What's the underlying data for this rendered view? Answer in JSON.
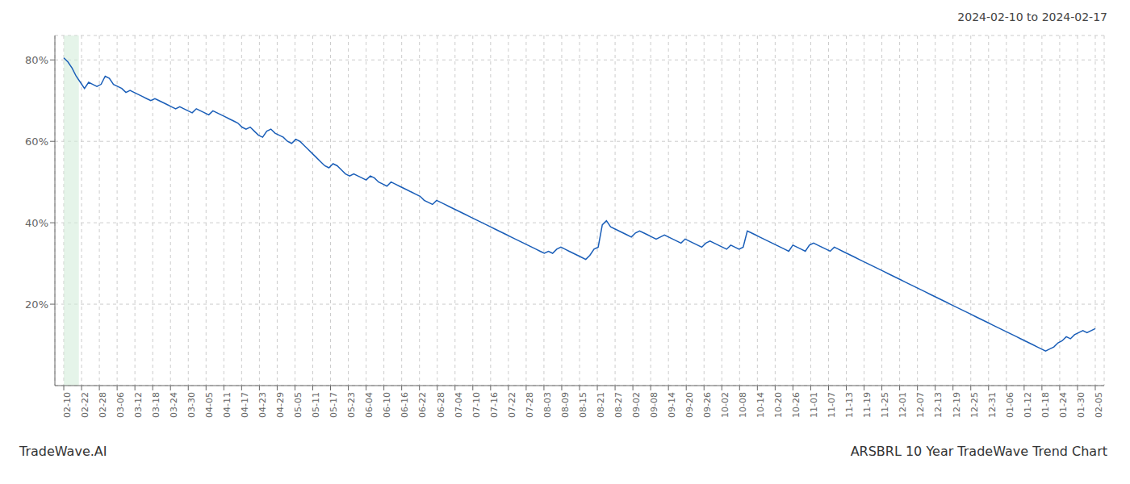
{
  "chart_data": {
    "type": "line",
    "title": "ARSBRL 10 Year TradeWave Trend Chart",
    "subtitle": "2024-02-10 to 2024-02-17",
    "annotations": [
      "TradeWave.AI"
    ],
    "color": "#1a5eb8",
    "grid": true,
    "xlim": [
      -0.5,
      58.5
    ],
    "xticks": [
      {
        "value": 0,
        "label": "02-10"
      },
      {
        "value": 1,
        "label": "02-22"
      },
      {
        "value": 2,
        "label": "02-28"
      },
      {
        "value": 3,
        "label": "03-06"
      },
      {
        "value": 4,
        "label": "03-12"
      },
      {
        "value": 5,
        "label": "03-18"
      },
      {
        "value": 6,
        "label": "03-24"
      },
      {
        "value": 7,
        "label": "03-30"
      },
      {
        "value": 8,
        "label": "04-05"
      },
      {
        "value": 9,
        "label": "04-11"
      },
      {
        "value": 10,
        "label": "04-17"
      },
      {
        "value": 11,
        "label": "04-23"
      },
      {
        "value": 12,
        "label": "04-29"
      },
      {
        "value": 13,
        "label": "05-05"
      },
      {
        "value": 14,
        "label": "05-11"
      },
      {
        "value": 15,
        "label": "05-17"
      },
      {
        "value": 16,
        "label": "05-23"
      },
      {
        "value": 17,
        "label": "06-04"
      },
      {
        "value": 18,
        "label": "06-10"
      },
      {
        "value": 19,
        "label": "06-16"
      },
      {
        "value": 20,
        "label": "06-22"
      },
      {
        "value": 21,
        "label": "06-28"
      },
      {
        "value": 22,
        "label": "07-04"
      },
      {
        "value": 23,
        "label": "07-10"
      },
      {
        "value": 24,
        "label": "07-16"
      },
      {
        "value": 25,
        "label": "07-22"
      },
      {
        "value": 26,
        "label": "07-28"
      },
      {
        "value": 27,
        "label": "08-03"
      },
      {
        "value": 28,
        "label": "08-09"
      },
      {
        "value": 29,
        "label": "08-15"
      },
      {
        "value": 30,
        "label": "08-21"
      },
      {
        "value": 31,
        "label": "08-27"
      },
      {
        "value": 32,
        "label": "09-02"
      },
      {
        "value": 33,
        "label": "09-08"
      },
      {
        "value": 34,
        "label": "09-14"
      },
      {
        "value": 35,
        "label": "09-20"
      },
      {
        "value": 36,
        "label": "09-26"
      },
      {
        "value": 37,
        "label": "10-02"
      },
      {
        "value": 38,
        "label": "10-08"
      },
      {
        "value": 39,
        "label": "10-14"
      },
      {
        "value": 40,
        "label": "10-20"
      },
      {
        "value": 41,
        "label": "10-26"
      },
      {
        "value": 42,
        "label": "11-01"
      },
      {
        "value": 43,
        "label": "11-07"
      },
      {
        "value": 44,
        "label": "11-13"
      },
      {
        "value": 45,
        "label": "11-19"
      },
      {
        "value": 46,
        "label": "11-25"
      },
      {
        "value": 47,
        "label": "12-01"
      },
      {
        "value": 48,
        "label": "12-07"
      },
      {
        "value": 49,
        "label": "12-13"
      },
      {
        "value": 50,
        "label": "12-19"
      },
      {
        "value": 51,
        "label": "12-25"
      },
      {
        "value": 52,
        "label": "12-31"
      },
      {
        "value": 53,
        "label": "01-06"
      },
      {
        "value": 54,
        "label": "01-12"
      },
      {
        "value": 55,
        "label": "01-18"
      },
      {
        "value": 56,
        "label": "01-24"
      },
      {
        "value": 57,
        "label": "01-30"
      },
      {
        "value": 58,
        "label": "02-05"
      }
    ],
    "ylim": [
      0,
      86
    ],
    "yticks": [
      {
        "value": 20,
        "label": "20%"
      },
      {
        "value": 40,
        "label": "40%"
      },
      {
        "value": 60,
        "label": "60%"
      },
      {
        "value": 80,
        "label": "80%"
      }
    ],
    "highlight": {
      "x": [
        0.0,
        0.85
      ],
      "color": "#d4edda"
    },
    "x": [
      0,
      0.2329,
      0.4659,
      0.6988,
      0.9317,
      1.1647,
      1.3976,
      1.6305,
      1.8635,
      2.0964,
      2.3293,
      2.5622,
      2.7952,
      3.0281,
      3.261,
      3.494,
      3.7269,
      3.9598,
      4.1928,
      4.4257,
      4.6586,
      4.8916,
      5.1245,
      5.3574,
      5.5904,
      5.8233,
      6.0562,
      6.2892,
      6.5221,
      6.755,
      6.988,
      7.2209,
      7.4538,
      7.6867,
      7.9197,
      8.1526,
      8.3855,
      8.6185,
      8.8514,
      9.0843,
      9.3173,
      9.5502,
      9.7831,
      10.0161,
      10.249,
      10.4819,
      10.7149,
      10.9478,
      11.1807,
      11.4137,
      11.6466,
      11.8795,
      12.1124,
      12.3454,
      12.5783,
      12.8112,
      13.0442,
      13.2771,
      13.51,
      13.743,
      13.9759,
      14.2088,
      14.4418,
      14.6747,
      14.9076,
      15.1406,
      15.3735,
      15.6064,
      15.8394,
      16.0723,
      16.3052,
      16.5382,
      16.7711,
      17.004,
      17.2369,
      17.4699,
      17.7028,
      17.9357,
      18.1687,
      18.4016,
      18.6345,
      18.8675,
      19.1004,
      19.3333,
      19.5663,
      19.7992,
      20.0321,
      20.2651,
      20.498,
      20.7309,
      20.9639,
      21.1968,
      21.4297,
      21.6627,
      21.8956,
      22.1285,
      22.3614,
      22.5944,
      22.8273,
      23.0602,
      23.2932,
      23.5261,
      23.759,
      23.992,
      24.2249,
      24.4578,
      24.6908,
      24.9237,
      25.1566,
      25.3896,
      25.6225,
      25.8554,
      26.0884,
      26.3213,
      26.5542,
      26.7871,
      27.0201,
      27.253,
      27.4859,
      27.7189,
      27.9518,
      28.1847,
      28.4177,
      28.6506,
      28.8835,
      29.1165,
      29.3494,
      29.5823,
      29.8153,
      30.0482,
      30.2811,
      30.5141,
      30.747,
      30.9799,
      31.2129,
      31.4458,
      31.6787,
      31.9116,
      32.1446,
      32.3775,
      32.6104,
      32.8434,
      33.0763,
      33.3092,
      33.5422,
      33.7751,
      34.008,
      34.241,
      34.4739,
      34.7068,
      34.9398,
      35.1727,
      35.4056,
      35.6386,
      35.8715,
      36.1044,
      36.3373,
      36.5703,
      36.8032,
      37.0361,
      37.2691,
      37.502,
      37.7349,
      37.9679,
      38.2008,
      38.4337,
      38.6667,
      38.8996,
      39.1325,
      39.3655,
      39.5984,
      39.8313,
      40.0643,
      40.2972,
      40.5301,
      40.7631,
      40.996,
      41.2289,
      41.4618,
      41.6948,
      41.9277,
      42.1606,
      42.3936,
      42.6265,
      42.8594,
      43.0924,
      43.3253,
      43.5582,
      43.7912,
      44.0241,
      44.257,
      44.49,
      44.7229,
      44.9558,
      45.1888,
      45.4217,
      45.6546,
      45.8876,
      46.1205,
      46.3534,
      46.5863,
      46.8193,
      47.0522,
      47.2851,
      47.5181,
      47.751,
      47.9839,
      48.2169,
      48.4498,
      48.6827,
      48.9157,
      49.1486,
      49.3815,
      49.6145,
      49.8474,
      50.0803,
      50.3133,
      50.5462,
      50.7791,
      51.012,
      51.245,
      51.4779,
      51.7108,
      51.9438,
      52.1767,
      52.4096,
      52.6426,
      52.8755,
      53.1084,
      53.3414,
      53.5743,
      53.8072,
      54.0402,
      54.2731,
      54.506,
      54.739,
      54.9719,
      55.2048,
      55.4378,
      55.6707,
      55.9036,
      56.1365,
      56.3695,
      56.6024,
      56.8353,
      57.0683,
      57.3012,
      57.5341,
      57.7671,
      58
    ],
    "values": [
      80.5,
      79.5,
      78.0,
      76.0,
      74.5,
      73.0,
      74.5,
      74.0,
      73.5,
      74.0,
      76.0,
      75.5,
      74.0,
      73.5,
      73.0,
      72.0,
      72.5,
      72.0,
      71.5,
      71.0,
      70.5,
      70.0,
      70.5,
      70.0,
      69.5,
      69.0,
      68.5,
      68.0,
      68.5,
      68.0,
      67.5,
      67.0,
      68.0,
      67.5,
      67.0,
      66.5,
      67.5,
      67.0,
      66.5,
      66.0,
      65.5,
      65.0,
      64.5,
      63.5,
      63.0,
      63.5,
      62.5,
      61.5,
      61.0,
      62.5,
      63.0,
      62.0,
      61.5,
      61.0,
      60.0,
      59.5,
      60.5,
      60.0,
      59.0,
      58.0,
      57.0,
      56.0,
      55.0,
      54.0,
      53.5,
      54.5,
      54.0,
      53.0,
      52.0,
      51.5,
      52.0,
      51.5,
      51.0,
      50.5,
      51.5,
      51.0,
      50.0,
      49.5,
      49.0,
      50.0,
      49.5,
      49.0,
      48.5,
      48.0,
      47.5,
      47.0,
      46.5,
      45.5,
      45.0,
      44.5,
      45.5,
      45.0,
      44.5,
      44.0,
      43.5,
      43.0,
      42.5,
      42.0,
      41.5,
      41.0,
      40.5,
      40.0,
      39.5,
      39.0,
      38.5,
      38.0,
      37.5,
      37.0,
      36.5,
      36.0,
      35.5,
      35.0,
      34.5,
      34.0,
      33.5,
      33.0,
      32.5,
      33.0,
      32.5,
      33.5,
      34.0,
      33.5,
      33.0,
      32.5,
      32.0,
      31.5,
      31.0,
      32.0,
      33.5,
      34.0,
      39.5,
      40.5,
      39.0,
      38.5,
      38.0,
      37.5,
      37.0,
      36.5,
      37.5,
      38.0,
      37.5,
      37.0,
      36.5,
      36.0,
      36.5,
      37.0,
      36.5,
      36.0,
      35.5,
      35.0,
      36.0,
      35.5,
      35.0,
      34.5,
      34.0,
      35.0,
      35.5,
      35.0,
      34.5,
      34.0,
      33.5,
      34.5,
      34.0,
      33.5,
      34.0,
      38.0,
      37.5,
      37.0,
      36.5,
      36.0,
      35.5,
      35.0,
      34.5,
      34.0,
      33.5,
      33.0,
      34.5,
      34.0,
      33.5,
      33.0,
      34.5,
      35.0,
      34.5,
      34.0,
      33.5,
      33.0,
      34.0,
      33.5,
      33.0,
      32.5,
      32.0,
      31.5,
      31.0,
      30.5,
      30.0,
      29.5,
      29.0,
      28.5,
      28.0,
      27.5,
      27.0,
      26.5,
      26.0,
      25.5,
      25.0,
      24.5,
      24.0,
      23.5,
      23.0,
      22.5,
      22.0,
      21.5,
      21.0,
      20.5,
      20.0,
      19.5,
      19.0,
      18.5,
      18.0,
      17.5,
      17.0,
      16.5,
      16.0,
      15.5,
      15.0,
      14.5,
      14.0,
      13.5,
      13.0,
      12.5,
      12.0,
      11.5,
      11.0,
      10.5,
      10.0,
      9.5,
      9.0,
      8.5,
      9.0,
      9.5,
      10.5,
      11.0,
      12.0,
      11.5,
      12.5,
      13.0,
      13.5,
      13.0,
      13.5,
      14.0
    ]
  }
}
